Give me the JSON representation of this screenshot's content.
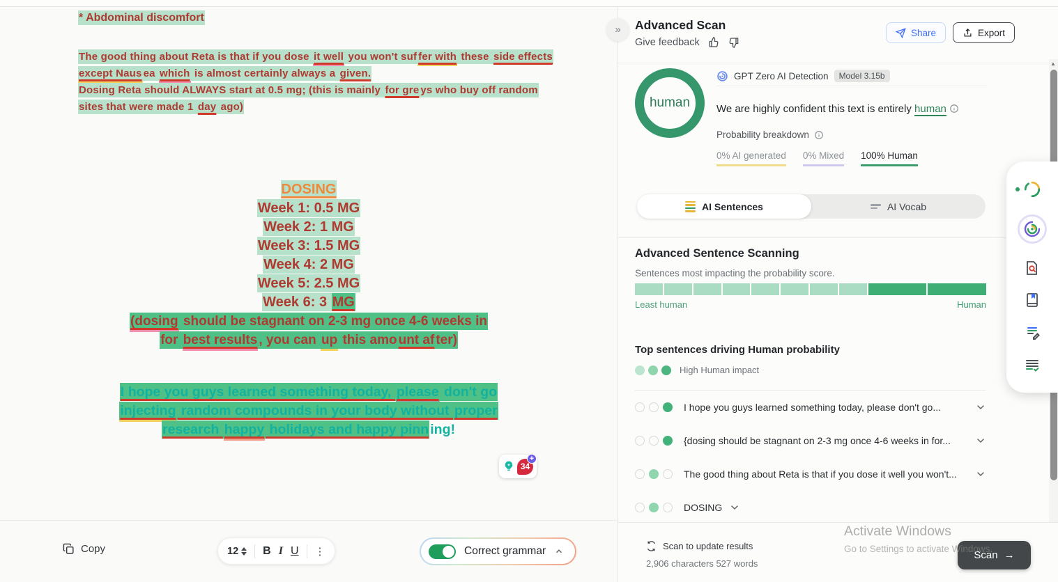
{
  "editor": {
    "doc": {
      "blocks": [
        {
          "lines": [
            {
              "segs": [
                {
                  "t": "* Abdominal discomfort",
                  "c": "hl"
                }
              ]
            }
          ]
        },
        {
          "lines": [
            {
              "segs": [
                {
                  "t": "The good thing about Reta is that if you dose ",
                  "c": "hl"
                },
                {
                  "t": "it well",
                  "c": "hl u bp"
                },
                {
                  "t": " you won't suf",
                  "c": "hl"
                },
                {
                  "t": "fer with",
                  "c": "hl u by"
                },
                {
                  "t": " these ",
                  "c": "hl"
                },
                {
                  "t": "side effects",
                  "c": "hl u"
                }
              ]
            },
            {
              "segs": [
                {
                  "t": "except Naus",
                  "c": "hl u by"
                },
                {
                  "t": "ea ",
                  "c": "hl"
                },
                {
                  "t": "which",
                  "c": "hl u bp"
                },
                {
                  "t": " is almost certainly always a ",
                  "c": "hl"
                },
                {
                  "t": "given.",
                  "c": "hl u"
                }
              ]
            },
            {
              "segs": [
                {
                  "t": "Dosing Reta should ALWAYS start at 0.5 mg; (this is mainly ",
                  "c": "hl"
                },
                {
                  "t": "for gre",
                  "c": "hl u"
                },
                {
                  "t": "ys who buy off random",
                  "c": "hl"
                }
              ]
            },
            {
              "segs": [
                {
                  "t": "sites that were made 1 ",
                  "c": "hl"
                },
                {
                  "t": "day",
                  "c": "hl u"
                },
                {
                  "t": " ago)",
                  "c": "hl"
                }
              ]
            }
          ]
        },
        {
          "lines": [
            {
              "segs": [
                {
                  "t": "DOSING",
                  "c": "orange"
                }
              ]
            },
            {
              "segs": [
                {
                  "t": "Week 1: 0.5 MG",
                  "c": "hl"
                }
              ]
            },
            {
              "segs": [
                {
                  "t": "Week 2: 1 MG",
                  "c": "hl"
                }
              ]
            },
            {
              "segs": [
                {
                  "t": "Week 3: 1.5 MG",
                  "c": "hl"
                }
              ]
            },
            {
              "segs": [
                {
                  "t": "Week 4: 2 MG",
                  "c": "hl"
                }
              ]
            },
            {
              "segs": [
                {
                  "t": "Week 5: 2.5 MG",
                  "c": "hl"
                }
              ]
            },
            {
              "segs": [
                {
                  "t": "Week 6: 3 ",
                  "c": "hl"
                },
                {
                  "t": "MG",
                  "c": "hlm u"
                }
              ]
            },
            {
              "s": 19,
              "segs": [
                {
                  "t": "(dosing",
                  "c": "hlm u bp"
                },
                {
                  "t": " should be stagnant on 2-3 mg once 4-6 weeks in",
                  "c": "hlm"
                }
              ]
            },
            {
              "s": 19,
              "segs": [
                {
                  "t": "for ",
                  "c": "hlm"
                },
                {
                  "t": "best results",
                  "c": "hlm u bp"
                },
                {
                  "t": ", you can ",
                  "c": "hlm"
                },
                {
                  "t": "up",
                  "c": "hlm by"
                },
                {
                  "t": " this amo",
                  "c": "hlm"
                },
                {
                  "t": "unt af",
                  "c": "hlm u"
                },
                {
                  "t": "ter)",
                  "c": "hlm"
                }
              ]
            }
          ]
        },
        {
          "lines": [
            {
              "segs": [
                {
                  "t": "I hope you guys learned something today, ",
                  "c": "teal u"
                },
                {
                  "t": "please",
                  "c": "teal u bgr"
                },
                {
                  "t": " don't go",
                  "c": "teal"
                }
              ]
            },
            {
              "segs": [
                {
                  "t": "injecting",
                  "c": "teal u by"
                },
                {
                  "t": " random compounds in your body without ",
                  "c": "teal u"
                },
                {
                  "t": "proper",
                  "c": "teal u"
                }
              ]
            },
            {
              "segs": [
                {
                  "t": "research ",
                  "c": "teal u"
                },
                {
                  "t": "happy",
                  "c": "teal u bsal"
                },
                {
                  "t": " holidays and happy pinn",
                  "c": "teal u"
                },
                {
                  "t": "ing!",
                  "c": "tealp"
                }
              ]
            }
          ]
        }
      ]
    },
    "assistant_widget": {
      "count": "34",
      "plus": "+"
    },
    "footer": {
      "copy_label": "Copy",
      "font_size": "12",
      "bold_label": "B",
      "italic_label": "I",
      "underline_label": "U",
      "kebab": "⋮",
      "grammar_label": "Correct grammar"
    }
  },
  "panel": {
    "header": {
      "title": "Advanced Scan",
      "feedback_label": "Give feedback",
      "share_label": "Share",
      "export_label": "Export",
      "collapse_glyph": "»"
    },
    "result": {
      "badge_label": "human",
      "detector_label": "GPT Zero AI Detection",
      "model_badge": "Model 3.15b",
      "confidence_prefix": "We are highly confident this text is entirely ",
      "confidence_word": "human",
      "breakdown_label": "Probability breakdown",
      "stats": [
        {
          "text": "0% AI generated",
          "underline_color": "#f0dc8e"
        },
        {
          "text": "0% Mixed",
          "underline_color": "#cfc9ee"
        },
        {
          "text": "100% Human",
          "underline_color": "#3a9d6e"
        }
      ]
    },
    "tabs": [
      {
        "label": "AI Sentences",
        "active": true
      },
      {
        "label": "AI Vocab",
        "active": false
      }
    ],
    "scanning": {
      "title": "Advanced Sentence Scanning",
      "subtitle": "Sentences most impacting the probability score.",
      "bar_segments": [
        "light",
        "light",
        "light",
        "light",
        "light",
        "light",
        "light",
        "light",
        "dark",
        "dark"
      ],
      "left_label": "Least human",
      "right_label": "Human"
    },
    "sentences": {
      "title": "Top sentences driving Human probability",
      "legend_label": "High Human impact",
      "legend_dots": [
        "#bce5cf",
        "#8fd6ae",
        "#4db57f"
      ],
      "rows": [
        {
          "dots": [
            "empty",
            "empty",
            "high"
          ],
          "text": "I hope you guys learned something today, please don't go...",
          "chevron_inline": false
        },
        {
          "dots": [
            "empty",
            "empty",
            "high"
          ],
          "text": "{dosing should be stagnant on 2-3 mg once 4-6 weeks in for...",
          "chevron_inline": false
        },
        {
          "dots": [
            "empty",
            "mid",
            "empty"
          ],
          "text": "The good thing about Reta is that if you dose it well you won't...",
          "chevron_inline": false
        },
        {
          "dots": [
            "empty",
            "mid",
            "empty"
          ],
          "text": "DOSING",
          "chevron_inline": true
        }
      ]
    },
    "footer": {
      "update_label": "Scan to update results",
      "counts_label": "2,906 characters 527 words",
      "scan_label": "Scan",
      "scan_arrow": "→"
    }
  },
  "watermark": {
    "line1": "Activate Windows",
    "line2": "Go to Settings to activate Windows."
  },
  "colors": {
    "highlight_light": "#b7e1ca",
    "highlight_medium": "#50c186",
    "doc_text_red": "#ae3a31",
    "doc_text_teal": "#12b2a0",
    "doc_heading_orange": "#ee8a3d",
    "grammar_underline_red": "#d03a2b",
    "human_ring_green": "#35976b",
    "bar_light_green": "#a9dcc2",
    "bar_dark_green": "#3fae74",
    "dot_high": "#4db57f",
    "dot_mid": "#8fd6ae",
    "share_blue": "#3f6df5",
    "toggle_green": "#1e9e5a",
    "scan_button_dark": "#43474a",
    "assistant_badge_red": "#d6293e",
    "assistant_plus_purple": "#6c5ce7"
  }
}
